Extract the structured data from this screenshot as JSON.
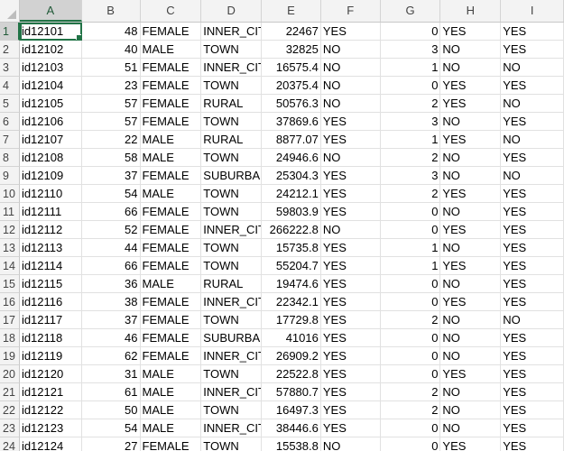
{
  "columns": [
    "A",
    "B",
    "C",
    "D",
    "E",
    "F",
    "G",
    "H",
    "I"
  ],
  "rows": [
    {
      "n": "1",
      "a": "id12101",
      "b": "48",
      "c": "FEMALE",
      "d": "INNER_CIT",
      "e": "22467",
      "f": "YES",
      "g": "0",
      "h": "YES",
      "i": "YES"
    },
    {
      "n": "2",
      "a": "id12102",
      "b": "40",
      "c": "MALE",
      "d": "TOWN",
      "e": "32825",
      "f": "NO",
      "g": "3",
      "h": "NO",
      "i": "YES"
    },
    {
      "n": "3",
      "a": "id12103",
      "b": "51",
      "c": "FEMALE",
      "d": "INNER_CIT",
      "e": "16575.4",
      "f": "NO",
      "g": "1",
      "h": "NO",
      "i": "NO"
    },
    {
      "n": "4",
      "a": "id12104",
      "b": "23",
      "c": "FEMALE",
      "d": "TOWN",
      "e": "20375.4",
      "f": "NO",
      "g": "0",
      "h": "YES",
      "i": "YES"
    },
    {
      "n": "5",
      "a": "id12105",
      "b": "57",
      "c": "FEMALE",
      "d": "RURAL",
      "e": "50576.3",
      "f": "NO",
      "g": "2",
      "h": "YES",
      "i": "NO"
    },
    {
      "n": "6",
      "a": "id12106",
      "b": "57",
      "c": "FEMALE",
      "d": "TOWN",
      "e": "37869.6",
      "f": "YES",
      "g": "3",
      "h": "NO",
      "i": "YES"
    },
    {
      "n": "7",
      "a": "id12107",
      "b": "22",
      "c": "MALE",
      "d": "RURAL",
      "e": "8877.07",
      "f": "YES",
      "g": "1",
      "h": "YES",
      "i": "NO"
    },
    {
      "n": "8",
      "a": "id12108",
      "b": "58",
      "c": "MALE",
      "d": "TOWN",
      "e": "24946.6",
      "f": "NO",
      "g": "2",
      "h": "NO",
      "i": "YES"
    },
    {
      "n": "9",
      "a": "id12109",
      "b": "37",
      "c": "FEMALE",
      "d": "SUBURBAI",
      "e": "25304.3",
      "f": "YES",
      "g": "3",
      "h": "NO",
      "i": "NO"
    },
    {
      "n": "10",
      "a": "id12110",
      "b": "54",
      "c": "MALE",
      "d": "TOWN",
      "e": "24212.1",
      "f": "YES",
      "g": "2",
      "h": "YES",
      "i": "YES"
    },
    {
      "n": "11",
      "a": "id12111",
      "b": "66",
      "c": "FEMALE",
      "d": "TOWN",
      "e": "59803.9",
      "f": "YES",
      "g": "0",
      "h": "NO",
      "i": "YES"
    },
    {
      "n": "12",
      "a": "id12112",
      "b": "52",
      "c": "FEMALE",
      "d": "INNER_CIT",
      "e": "266222.8",
      "f": "NO",
      "g": "0",
      "h": "YES",
      "i": "YES"
    },
    {
      "n": "13",
      "a": "id12113",
      "b": "44",
      "c": "FEMALE",
      "d": "TOWN",
      "e": "15735.8",
      "f": "YES",
      "g": "1",
      "h": "NO",
      "i": "YES"
    },
    {
      "n": "14",
      "a": "id12114",
      "b": "66",
      "c": "FEMALE",
      "d": "TOWN",
      "e": "55204.7",
      "f": "YES",
      "g": "1",
      "h": "YES",
      "i": "YES"
    },
    {
      "n": "15",
      "a": "id12115",
      "b": "36",
      "c": "MALE",
      "d": "RURAL",
      "e": "19474.6",
      "f": "YES",
      "g": "0",
      "h": "NO",
      "i": "YES"
    },
    {
      "n": "16",
      "a": "id12116",
      "b": "38",
      "c": "FEMALE",
      "d": "INNER_CIT",
      "e": "22342.1",
      "f": "YES",
      "g": "0",
      "h": "YES",
      "i": "YES"
    },
    {
      "n": "17",
      "a": "id12117",
      "b": "37",
      "c": "FEMALE",
      "d": "TOWN",
      "e": "17729.8",
      "f": "YES",
      "g": "2",
      "h": "NO",
      "i": "NO"
    },
    {
      "n": "18",
      "a": "id12118",
      "b": "46",
      "c": "FEMALE",
      "d": "SUBURBAI",
      "e": "41016",
      "f": "YES",
      "g": "0",
      "h": "NO",
      "i": "YES"
    },
    {
      "n": "19",
      "a": "id12119",
      "b": "62",
      "c": "FEMALE",
      "d": "INNER_CIT",
      "e": "26909.2",
      "f": "YES",
      "g": "0",
      "h": "NO",
      "i": "YES"
    },
    {
      "n": "20",
      "a": "id12120",
      "b": "31",
      "c": "MALE",
      "d": "TOWN",
      "e": "22522.8",
      "f": "YES",
      "g": "0",
      "h": "YES",
      "i": "YES"
    },
    {
      "n": "21",
      "a": "id12121",
      "b": "61",
      "c": "MALE",
      "d": "INNER_CIT",
      "e": "57880.7",
      "f": "YES",
      "g": "2",
      "h": "NO",
      "i": "YES"
    },
    {
      "n": "22",
      "a": "id12122",
      "b": "50",
      "c": "MALE",
      "d": "TOWN",
      "e": "16497.3",
      "f": "YES",
      "g": "2",
      "h": "NO",
      "i": "YES"
    },
    {
      "n": "23",
      "a": "id12123",
      "b": "54",
      "c": "MALE",
      "d": "INNER_CIT",
      "e": "38446.6",
      "f": "YES",
      "g": "0",
      "h": "NO",
      "i": "YES"
    },
    {
      "n": "24",
      "a": "id12124",
      "b": "27",
      "c": "FEMALE",
      "d": "TOWN",
      "e": "15538.8",
      "f": "NO",
      "g": "0",
      "h": "YES",
      "i": "YES"
    }
  ],
  "selected_cell": "A1",
  "colors": {
    "accent": "#217346",
    "header_bg": "#f3f3f3",
    "grid": "#e1e1e1"
  }
}
